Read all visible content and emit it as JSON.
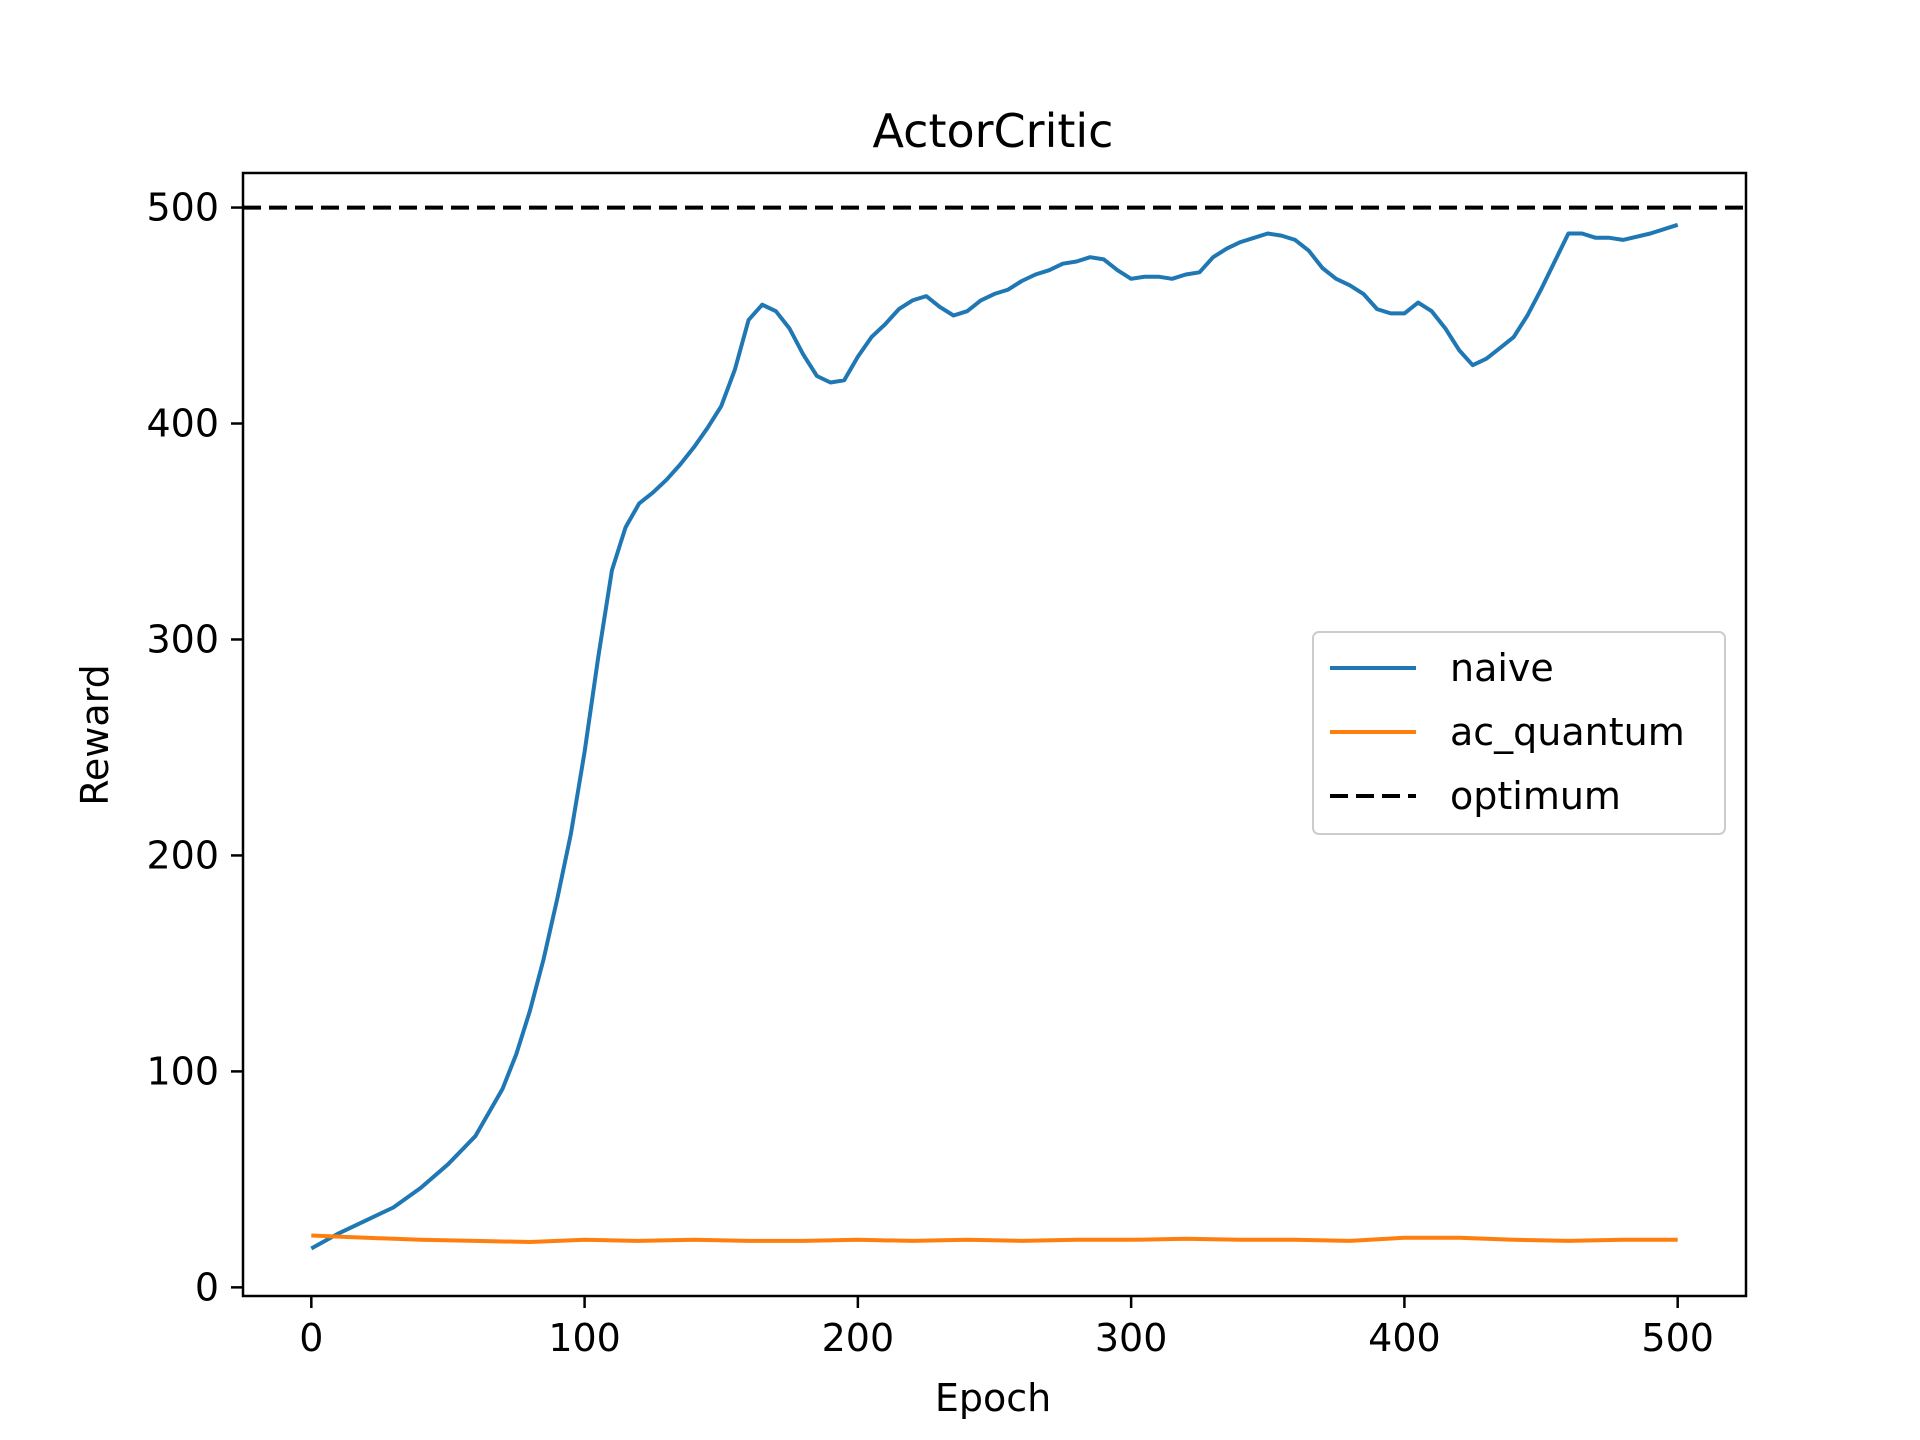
{
  "chart_data": {
    "type": "line",
    "title": "ActorCritic",
    "xlabel": "Epoch",
    "ylabel": "Reward",
    "xlim": [
      -25,
      525
    ],
    "ylim": [
      -4,
      516
    ],
    "xticks": [
      0,
      100,
      200,
      300,
      400,
      500
    ],
    "yticks": [
      0,
      100,
      200,
      300,
      400,
      500
    ],
    "grid": false,
    "legend_position": "center-right",
    "series": [
      {
        "name": "naive",
        "color": "#1f77b4",
        "style": "solid",
        "x": [
          0,
          10,
          20,
          30,
          40,
          50,
          60,
          70,
          75,
          80,
          85,
          90,
          95,
          100,
          105,
          110,
          115,
          120,
          125,
          130,
          135,
          140,
          145,
          150,
          155,
          160,
          165,
          170,
          175,
          180,
          185,
          190,
          195,
          200,
          205,
          210,
          215,
          220,
          225,
          230,
          235,
          240,
          245,
          250,
          255,
          260,
          265,
          270,
          275,
          280,
          285,
          290,
          295,
          300,
          305,
          310,
          315,
          320,
          325,
          330,
          335,
          340,
          345,
          350,
          355,
          360,
          365,
          370,
          375,
          380,
          385,
          390,
          395,
          400,
          405,
          410,
          415,
          420,
          425,
          430,
          435,
          440,
          445,
          450,
          455,
          460,
          465,
          470,
          475,
          480,
          490,
          500
        ],
        "y": [
          18,
          25,
          31,
          37,
          46,
          57,
          70,
          92,
          108,
          128,
          152,
          180,
          210,
          248,
          292,
          332,
          352,
          363,
          368,
          374,
          381,
          389,
          398,
          408,
          425,
          448,
          455,
          452,
          444,
          432,
          422,
          419,
          420,
          431,
          440,
          446,
          453,
          457,
          459,
          454,
          450,
          452,
          457,
          460,
          462,
          466,
          469,
          471,
          474,
          475,
          477,
          476,
          471,
          467,
          468,
          468,
          467,
          469,
          470,
          477,
          481,
          484,
          486,
          488,
          487,
          485,
          480,
          472,
          467,
          464,
          460,
          453,
          451,
          451,
          456,
          452,
          444,
          434,
          427,
          430,
          435,
          440,
          450,
          462,
          475,
          488,
          488,
          486,
          486,
          485,
          488,
          492
        ]
      },
      {
        "name": "ac_quantum",
        "color": "#ff7f0e",
        "style": "solid",
        "x": [
          0,
          20,
          40,
          60,
          80,
          100,
          120,
          140,
          160,
          180,
          200,
          220,
          240,
          260,
          280,
          300,
          320,
          340,
          360,
          380,
          400,
          420,
          440,
          460,
          480,
          500
        ],
        "y": [
          24,
          23,
          22,
          21.5,
          21,
          22,
          21.5,
          22,
          21.5,
          21.5,
          22,
          21.5,
          22,
          21.5,
          22,
          22,
          22.5,
          22,
          22,
          21.5,
          23,
          23,
          22,
          21.5,
          22,
          22
        ]
      },
      {
        "name": "optimum",
        "color": "#000000",
        "style": "dashed",
        "x": [
          -25,
          525
        ],
        "y": [
          500,
          500
        ]
      }
    ]
  }
}
